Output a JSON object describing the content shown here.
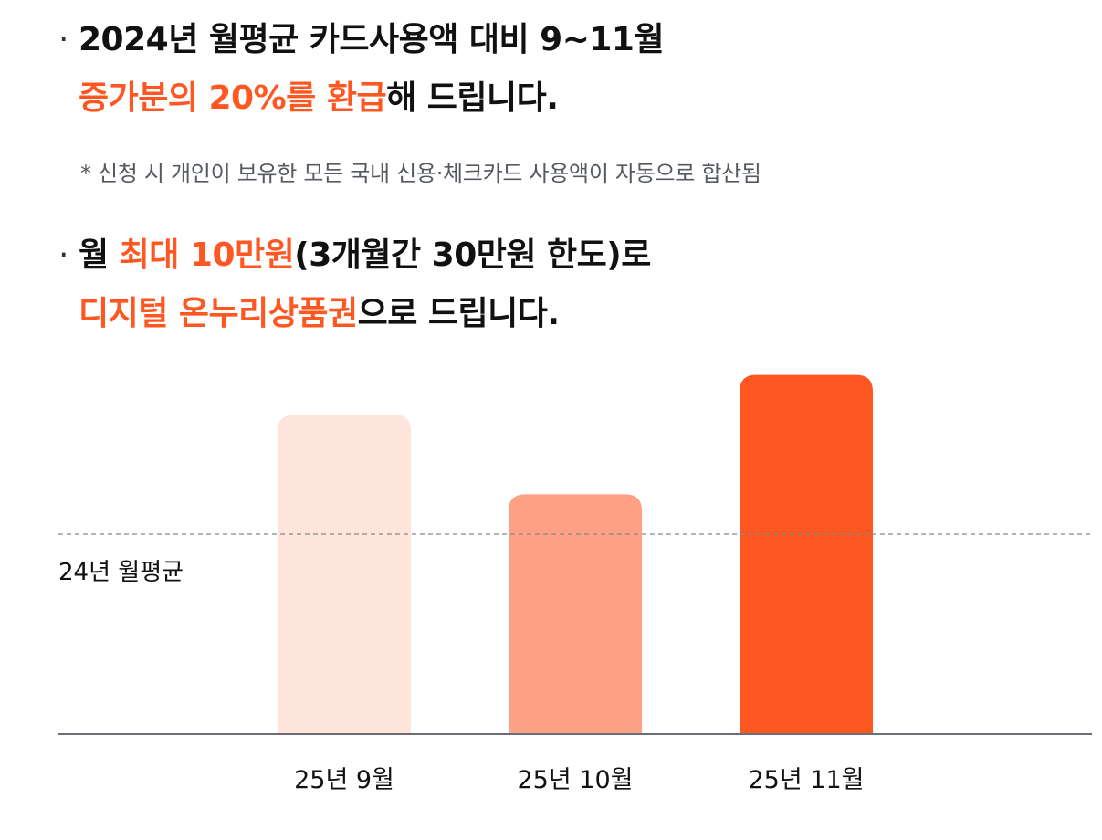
{
  "headline1": {
    "bullet": "·",
    "line1": "2024년 월평균 카드사용액 대비 9~11월",
    "highlight": "증가분의 20%를 환급",
    "rest": "해 드립니다."
  },
  "note": "* 신청 시 개인이 보유한 모든 국내 신용·체크카드 사용액이 자동으로 합산됨",
  "headline2": {
    "bullet": "·",
    "prefix": "월 ",
    "highlight1": "최대 10만원",
    "middle": "(3개월간 30만원 한도)로",
    "highlight2": "디지털 온누리상품권",
    "rest": "으로 드립니다."
  },
  "colors": {
    "accent": "#ff5722",
    "bar_light": "#fde5dc",
    "bar_mid": "#fea086",
    "bar_strong": "#ff5722",
    "baseline": "#6b6f75",
    "reference_line": "#888888"
  },
  "chart_data": {
    "type": "bar",
    "categories": [
      "25년 9월",
      "25년 10월",
      "25년 11월"
    ],
    "values": [
      1.6,
      1.2,
      1.8
    ],
    "bar_colors": [
      "#fde5dc",
      "#fea086",
      "#ff5722"
    ],
    "reference_line": {
      "label": "24년 월평균",
      "value": 1.0,
      "style": "dashed"
    },
    "ylim": [
      0,
      2
    ],
    "grid": false,
    "value_labels_shown": false
  }
}
